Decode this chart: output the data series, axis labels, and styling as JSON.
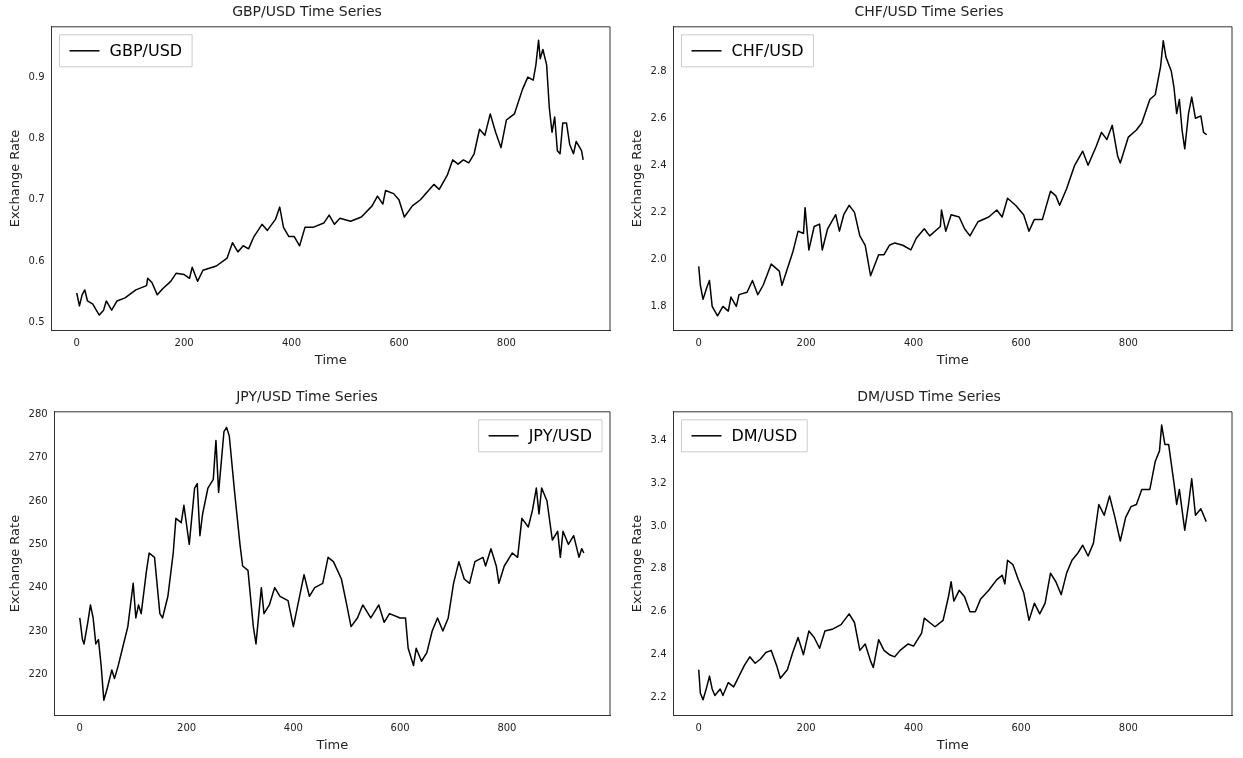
{
  "chart_data": [
    {
      "type": "line",
      "title": "GBP/USD Time Series",
      "xlabel": "Time",
      "ylabel": "Exchange Rate",
      "legend": "top left",
      "xlim": [
        -47,
        993
      ],
      "xticks": [
        0,
        200,
        400,
        600,
        800
      ],
      "ylim": [
        0.487,
        0.982
      ],
      "yticks": [
        0.5,
        0.6,
        0.7,
        0.8,
        0.9
      ],
      "series": [
        {
          "name": "GBP/USD",
          "color": "#000000",
          "x": [
            0,
            5,
            10,
            15,
            20,
            30,
            35,
            42,
            50,
            55,
            65,
            75,
            90,
            110,
            130,
            132,
            140,
            150,
            160,
            175,
            185,
            200,
            210,
            215,
            225,
            235,
            260,
            280,
            290,
            300,
            310,
            320,
            330,
            345,
            355,
            370,
            378,
            385,
            395,
            405,
            415,
            425,
            440,
            460,
            470,
            480,
            490,
            510,
            530,
            550,
            560,
            570,
            575,
            590,
            600,
            610,
            625,
            640,
            655,
            665,
            675,
            690,
            700,
            710,
            720,
            730,
            740,
            750,
            760,
            770,
            780,
            790,
            800,
            815,
            830,
            840,
            850,
            855,
            860,
            863,
            868,
            875,
            880,
            885,
            890,
            895,
            900,
            905,
            912,
            918,
            925,
            930,
            940,
            943
          ],
          "values": [
            0.548,
            0.527,
            0.545,
            0.553,
            0.535,
            0.53,
            0.522,
            0.512,
            0.52,
            0.535,
            0.52,
            0.535,
            0.54,
            0.553,
            0.56,
            0.572,
            0.565,
            0.545,
            0.555,
            0.567,
            0.58,
            0.578,
            0.572,
            0.59,
            0.567,
            0.585,
            0.592,
            0.605,
            0.63,
            0.615,
            0.625,
            0.62,
            0.64,
            0.66,
            0.65,
            0.668,
            0.688,
            0.655,
            0.64,
            0.64,
            0.625,
            0.655,
            0.655,
            0.662,
            0.675,
            0.66,
            0.67,
            0.665,
            0.672,
            0.69,
            0.706,
            0.693,
            0.715,
            0.71,
            0.7,
            0.672,
            0.69,
            0.7,
            0.715,
            0.725,
            0.717,
            0.74,
            0.765,
            0.758,
            0.765,
            0.76,
            0.775,
            0.815,
            0.805,
            0.84,
            0.81,
            0.785,
            0.83,
            0.84,
            0.88,
            0.9,
            0.895,
            0.92,
            0.96,
            0.93,
            0.945,
            0.92,
            0.85,
            0.81,
            0.835,
            0.78,
            0.775,
            0.825,
            0.825,
            0.79,
            0.775,
            0.795,
            0.78,
            0.765
          ]
        }
      ]
    },
    {
      "type": "line",
      "title": "CHF/USD Time Series",
      "xlabel": "Time",
      "ylabel": "Exchange Rate",
      "legend": "top left",
      "xlim": [
        -47,
        993
      ],
      "xticks": [
        0,
        200,
        400,
        600,
        800
      ],
      "ylim": [
        1.698,
        2.989
      ],
      "yticks": [
        {
          "value": 1.8,
          "label": "1.8"
        },
        {
          "value": 2,
          "label": "2.0"
        },
        {
          "value": 2.2,
          "label": "2.2"
        },
        {
          "value": 2.4,
          "label": "2.4"
        },
        {
          "value": 2.6,
          "label": "2.6"
        },
        {
          "value": 2.8,
          "label": "2.8"
        }
      ],
      "series": [
        {
          "name": "CHF/USD",
          "color": "#000000",
          "x": [
            0,
            3,
            8,
            15,
            20,
            25,
            30,
            35,
            45,
            55,
            60,
            70,
            75,
            90,
            100,
            110,
            120,
            135,
            150,
            155,
            165,
            175,
            185,
            195,
            198,
            205,
            215,
            225,
            230,
            240,
            255,
            262,
            270,
            280,
            290,
            300,
            310,
            320,
            335,
            345,
            355,
            365,
            380,
            395,
            405,
            420,
            430,
            450,
            452,
            460,
            470,
            485,
            495,
            505,
            520,
            540,
            555,
            565,
            575,
            590,
            605,
            615,
            625,
            640,
            655,
            665,
            672,
            685,
            700,
            715,
            725,
            740,
            750,
            760,
            770,
            780,
            785,
            800,
            815,
            825,
            840,
            850,
            860,
            865,
            870,
            880,
            885,
            890,
            895,
            900,
            905,
            912,
            918,
            925,
            935,
            940,
            946
          ],
          "values": [
            1.97,
            1.89,
            1.83,
            1.88,
            1.91,
            1.8,
            1.78,
            1.76,
            1.8,
            1.78,
            1.84,
            1.8,
            1.85,
            1.86,
            1.91,
            1.85,
            1.89,
            1.98,
            1.95,
            1.89,
            1.96,
            2.03,
            2.12,
            2.11,
            2.22,
            2.04,
            2.14,
            2.15,
            2.04,
            2.13,
            2.19,
            2.12,
            2.19,
            2.23,
            2.2,
            2.1,
            2.06,
            1.93,
            2.02,
            2.02,
            2.06,
            2.07,
            2.06,
            2.04,
            2.09,
            2.13,
            2.1,
            2.14,
            2.21,
            2.12,
            2.19,
            2.18,
            2.13,
            2.1,
            2.16,
            2.18,
            2.21,
            2.18,
            2.26,
            2.23,
            2.19,
            2.12,
            2.17,
            2.17,
            2.29,
            2.27,
            2.23,
            2.3,
            2.4,
            2.46,
            2.4,
            2.48,
            2.54,
            2.51,
            2.57,
            2.44,
            2.41,
            2.52,
            2.55,
            2.58,
            2.68,
            2.7,
            2.82,
            2.93,
            2.86,
            2.8,
            2.73,
            2.62,
            2.68,
            2.55,
            2.47,
            2.62,
            2.69,
            2.6,
            2.61,
            2.54,
            2.53
          ]
        }
      ]
    },
    {
      "type": "line",
      "title": "JPY/USD Time Series",
      "xlabel": "Time",
      "ylabel": "Exchange Rate",
      "legend": "top right",
      "xlim": [
        -47,
        993
      ],
      "xticks": [
        0,
        200,
        400,
        600,
        800
      ],
      "ylim": [
        210.5,
        280.6
      ],
      "yticks": [
        220,
        230,
        240,
        250,
        260,
        270,
        280
      ],
      "series": [
        {
          "name": "JPY/USD",
          "color": "#000000",
          "x": [
            0,
            5,
            8,
            15,
            20,
            25,
            30,
            35,
            40,
            45,
            52,
            60,
            65,
            72,
            80,
            90,
            95,
            100,
            105,
            110,
            115,
            125,
            130,
            140,
            150,
            155,
            165,
            175,
            180,
            190,
            195,
            205,
            215,
            220,
            225,
            230,
            240,
            250,
            255,
            260,
            270,
            275,
            280,
            290,
            300,
            305,
            315,
            325,
            330,
            340,
            345,
            355,
            365,
            375,
            390,
            400,
            410,
            420,
            430,
            440,
            455,
            465,
            475,
            490,
            500,
            508,
            520,
            530,
            545,
            560,
            570,
            580,
            600,
            610,
            615,
            620,
            625,
            630,
            640,
            650,
            660,
            670,
            680,
            690,
            700,
            710,
            720,
            730,
            740,
            755,
            760,
            770,
            780,
            785,
            795,
            810,
            820,
            828,
            840,
            848,
            855,
            860,
            865,
            875,
            885,
            895,
            900,
            905,
            915,
            925,
            935,
            940,
            944
          ],
          "values": [
            233,
            228,
            227,
            232,
            236,
            233,
            227,
            228,
            222,
            214,
            217,
            221,
            219,
            222,
            226,
            231,
            236,
            241,
            233,
            236,
            234,
            244,
            248,
            247,
            234,
            233,
            238,
            248,
            256,
            255,
            259,
            250,
            263,
            264,
            252,
            257,
            263,
            265,
            274,
            262,
            276,
            277,
            275,
            262,
            250,
            245,
            244,
            231,
            227,
            240,
            234,
            236,
            240,
            238,
            237,
            231,
            237,
            243,
            238,
            240,
            241,
            247,
            246,
            242,
            236,
            231,
            233,
            236,
            233,
            236,
            232,
            234,
            233,
            233,
            226,
            224,
            222,
            226,
            223,
            225,
            230,
            233,
            230,
            233,
            241,
            246,
            242,
            241,
            246,
            247,
            245,
            249,
            245,
            241,
            245,
            248,
            247,
            256,
            254,
            258,
            263,
            257,
            263,
            260,
            251,
            253,
            247,
            253,
            250,
            252,
            247,
            249,
            248
          ]
        }
      ]
    },
    {
      "type": "line",
      "title": "DM/USD Time Series",
      "xlabel": "Time",
      "ylabel": "Exchange Rate",
      "legend": "top left",
      "xlim": [
        -47,
        993
      ],
      "xticks": [
        0,
        200,
        400,
        600,
        800
      ],
      "ylim": [
        2.117,
        3.532
      ],
      "yticks": [
        2.2,
        2.4,
        2.6,
        2.8,
        {
          "value": 3,
          "label": "3.0"
        },
        3.2,
        3.4
      ],
      "series": [
        {
          "name": "DM/USD",
          "color": "#000000",
          "x": [
            0,
            3,
            8,
            15,
            20,
            25,
            30,
            40,
            45,
            55,
            65,
            75,
            85,
            95,
            105,
            115,
            125,
            135,
            145,
            152,
            165,
            175,
            185,
            195,
            205,
            215,
            225,
            235,
            250,
            265,
            280,
            290,
            300,
            310,
            320,
            325,
            335,
            345,
            355,
            365,
            375,
            390,
            400,
            415,
            420,
            430,
            440,
            455,
            465,
            470,
            475,
            485,
            495,
            505,
            515,
            525,
            540,
            555,
            565,
            570,
            575,
            585,
            595,
            605,
            615,
            625,
            635,
            645,
            655,
            665,
            675,
            685,
            695,
            705,
            715,
            725,
            735,
            745,
            755,
            765,
            775,
            785,
            795,
            805,
            815,
            825,
            840,
            850,
            858,
            862,
            868,
            875,
            885,
            890,
            895,
            905,
            912,
            918,
            925,
            935,
            945
          ],
          "values": [
            2.33,
            2.22,
            2.19,
            2.25,
            2.3,
            2.24,
            2.21,
            2.24,
            2.21,
            2.27,
            2.25,
            2.3,
            2.35,
            2.39,
            2.36,
            2.38,
            2.41,
            2.42,
            2.35,
            2.29,
            2.33,
            2.41,
            2.48,
            2.4,
            2.51,
            2.48,
            2.43,
            2.51,
            2.52,
            2.54,
            2.59,
            2.55,
            2.42,
            2.45,
            2.37,
            2.34,
            2.47,
            2.42,
            2.4,
            2.39,
            2.42,
            2.45,
            2.44,
            2.5,
            2.57,
            2.55,
            2.53,
            2.56,
            2.67,
            2.74,
            2.65,
            2.7,
            2.67,
            2.6,
            2.6,
            2.66,
            2.7,
            2.75,
            2.77,
            2.73,
            2.84,
            2.82,
            2.75,
            2.69,
            2.56,
            2.64,
            2.59,
            2.64,
            2.78,
            2.74,
            2.68,
            2.78,
            2.84,
            2.87,
            2.91,
            2.86,
            2.92,
            3.1,
            3.05,
            3.14,
            3.04,
            2.93,
            3.04,
            3.09,
            3.1,
            3.17,
            3.17,
            3.3,
            3.35,
            3.47,
            3.38,
            3.38,
            3.2,
            3.1,
            3.17,
            2.98,
            3.1,
            3.22,
            3.05,
            3.08,
            3.02
          ]
        }
      ]
    }
  ]
}
